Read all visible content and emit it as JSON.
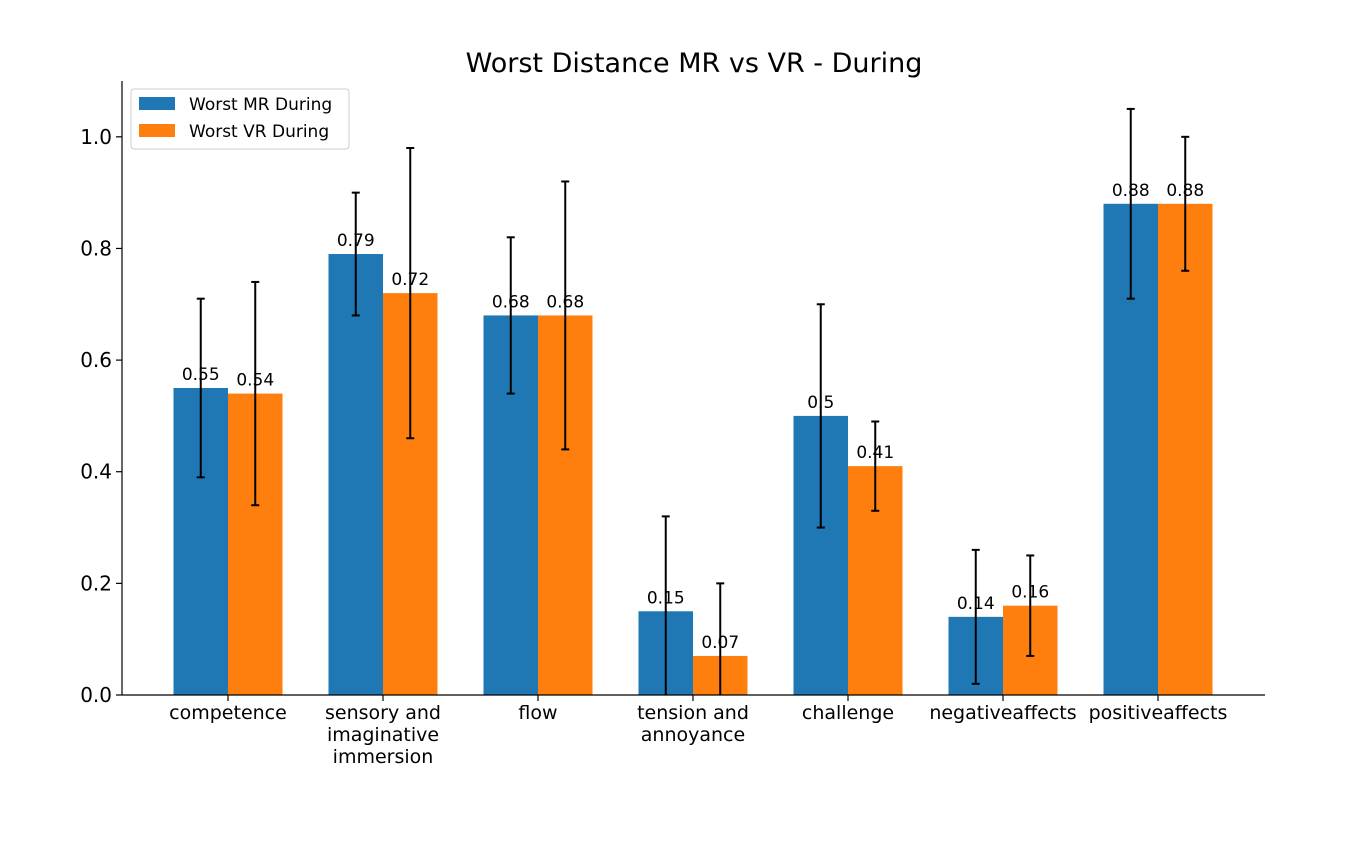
{
  "chart_data": {
    "type": "bar",
    "title": "Worst Distance MR vs VR - During",
    "xlabel": "",
    "ylabel": "",
    "ylim": [
      0,
      1.1
    ],
    "yticks": [
      "0.0",
      "0.2",
      "0.4",
      "0.6",
      "0.8",
      "1.0"
    ],
    "grid": false,
    "legend_position": "top-left",
    "categories": [
      [
        "competence"
      ],
      [
        "sensory and",
        "imaginative",
        "immersion"
      ],
      [
        "flow"
      ],
      [
        "tension and",
        "annoyance"
      ],
      [
        "challenge"
      ],
      [
        "negativeaffects"
      ],
      [
        "positiveaffects"
      ]
    ],
    "series": [
      {
        "name": "Worst MR During",
        "color": "#1f77b4",
        "values": [
          0.55,
          0.79,
          0.68,
          0.15,
          0.5,
          0.14,
          0.88
        ],
        "labels": [
          "0.55",
          "0.79",
          "0.68",
          "0.15",
          "0.5",
          "0.14",
          "0.88"
        ],
        "errors": [
          0.16,
          0.11,
          0.14,
          0.17,
          0.2,
          0.12,
          0.17
        ]
      },
      {
        "name": "Worst VR During",
        "color": "#ff7f0e",
        "values": [
          0.54,
          0.72,
          0.68,
          0.07,
          0.41,
          0.16,
          0.88
        ],
        "labels": [
          "0.54",
          "0.72",
          "0.68",
          "0.07",
          "0.41",
          "0.16",
          "0.88"
        ],
        "errors": [
          0.2,
          0.26,
          0.24,
          0.13,
          0.08,
          0.09,
          0.12
        ]
      }
    ]
  }
}
